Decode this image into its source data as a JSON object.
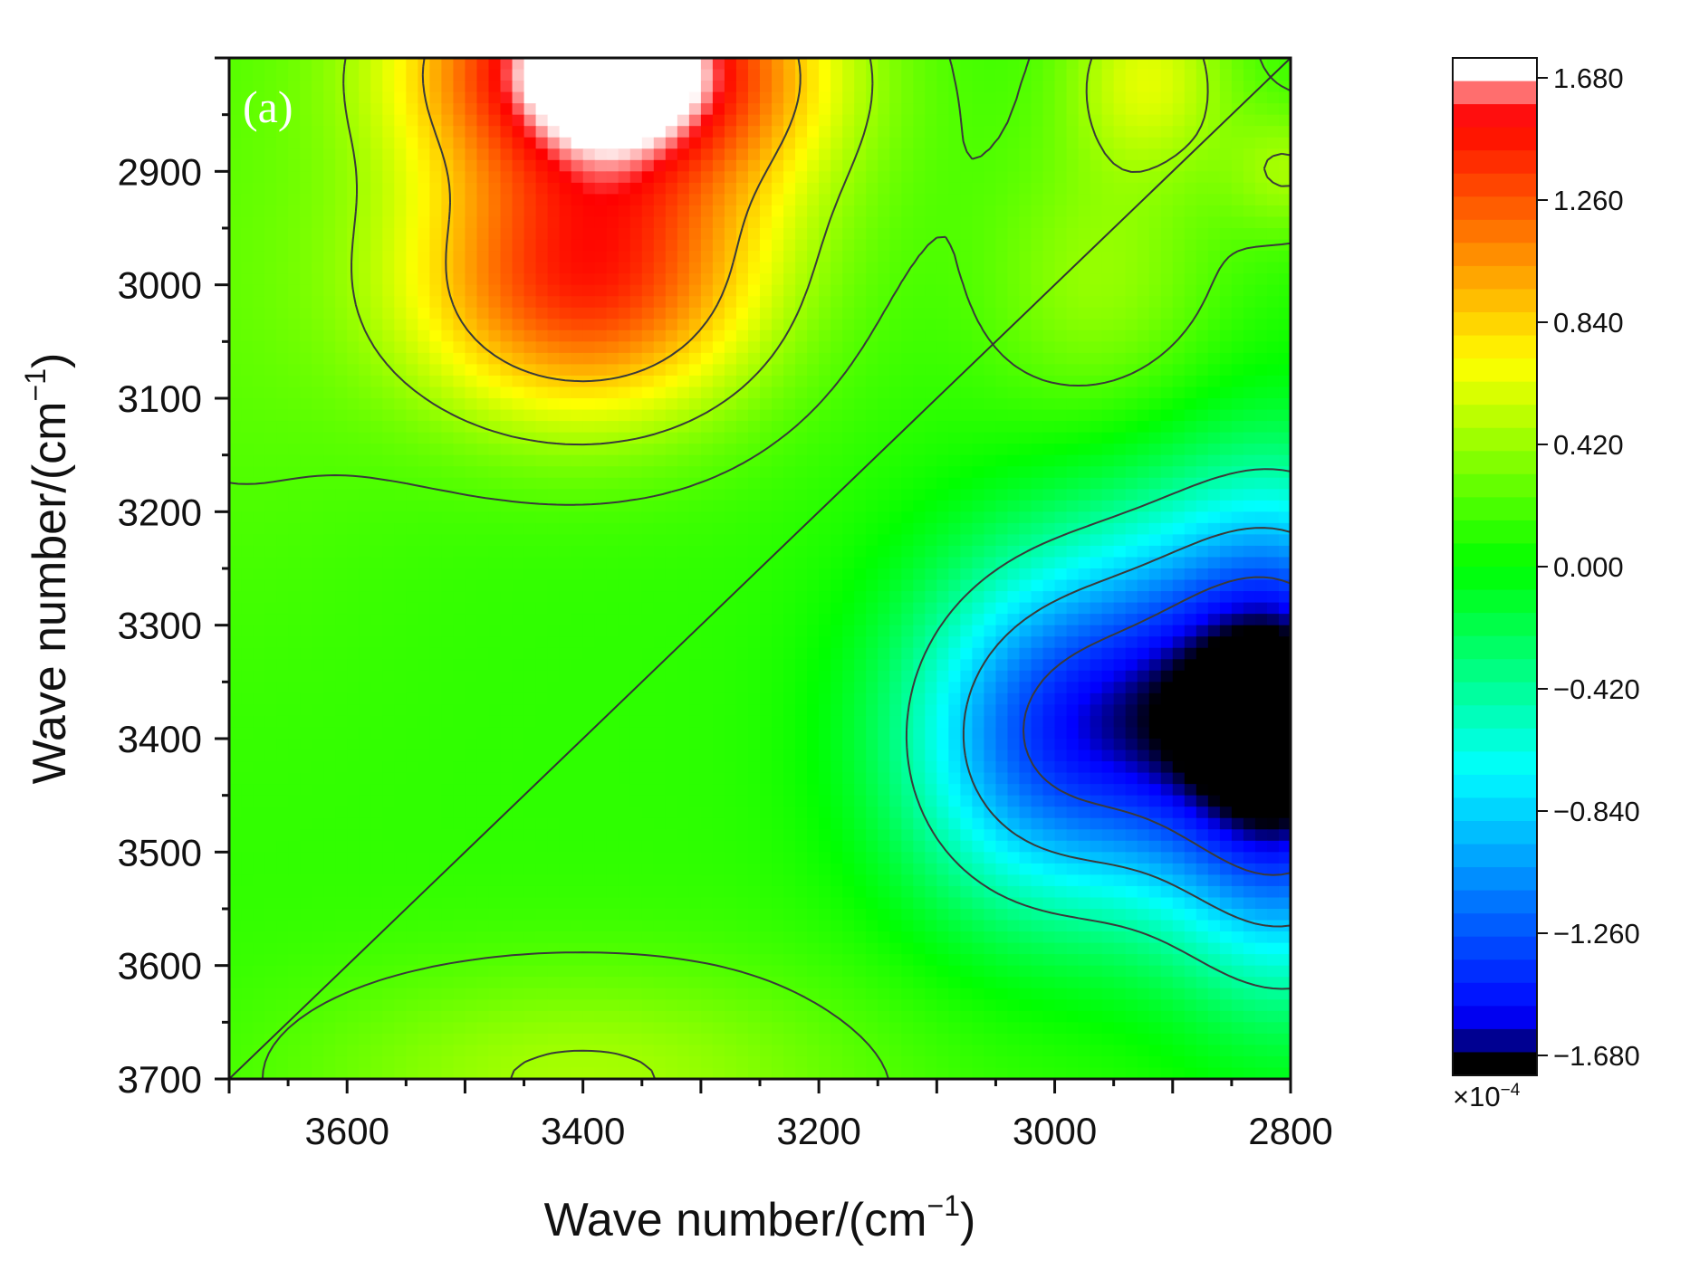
{
  "chart_data": {
    "type": "heatmap",
    "subtype": "2D correlation contour map",
    "panel_label": "(a)",
    "xlabel_main": "Wave number/(cm",
    "xlabel_sup": "−1",
    "xlabel_close": ")",
    "ylabel_main": "Wave number/(cm",
    "ylabel_sup": "−1",
    "ylabel_close": ")",
    "x_axis": {
      "range": [
        3700,
        2800
      ],
      "ticks": [
        3600,
        3400,
        3200,
        3000,
        2800
      ],
      "tick_labels": [
        "3600",
        "3400",
        "3200",
        "3000",
        "2800"
      ],
      "reversed": true
    },
    "y_axis": {
      "range": [
        2800,
        3700
      ],
      "ticks": [
        2900,
        3000,
        3100,
        3200,
        3300,
        3400,
        3500,
        3600,
        3700
      ],
      "tick_labels": [
        "2900",
        "3000",
        "3100",
        "3200",
        "3300",
        "3400",
        "3500",
        "3600",
        "3700"
      ],
      "inverted": true
    },
    "colorbar": {
      "min": -1.68,
      "max": 1.68,
      "tick_values": [
        1.68,
        1.26,
        0.84,
        0.42,
        0.0,
        -0.42,
        -0.84,
        -1.26,
        -1.68
      ],
      "tick_labels": [
        "1.680",
        "1.260",
        "0.840",
        "0.420",
        "0.000",
        "−0.420",
        "−0.840",
        "−1.260",
        "−1.680"
      ],
      "scale_base": "×10",
      "scale_exp": "−4",
      "colormap": [
        "#000000",
        "#0000ff",
        "#00ffff",
        "#00ff00",
        "#ffff00",
        "#ff0000",
        "#ffffff"
      ]
    },
    "contour_levels": [
      -1.26,
      -0.84,
      -0.42,
      0.21,
      0.42,
      0.84
    ],
    "peaks": [
      {
        "x": 3380,
        "y": 2800,
        "value": 1.6
      },
      {
        "x": 3400,
        "y": 3000,
        "value": 1.22
      },
      {
        "x": 2920,
        "y": 2815,
        "value": 0.55
      },
      {
        "x": 3000,
        "y": 3400,
        "value": -1.2
      },
      {
        "x": 2800,
        "y": 3400,
        "value": -1.62
      },
      {
        "x": 3400,
        "y": 3700,
        "value": 0.4
      }
    ],
    "diagonal": {
      "from": [
        3700,
        3700
      ],
      "to": [
        2800,
        2800
      ]
    }
  }
}
